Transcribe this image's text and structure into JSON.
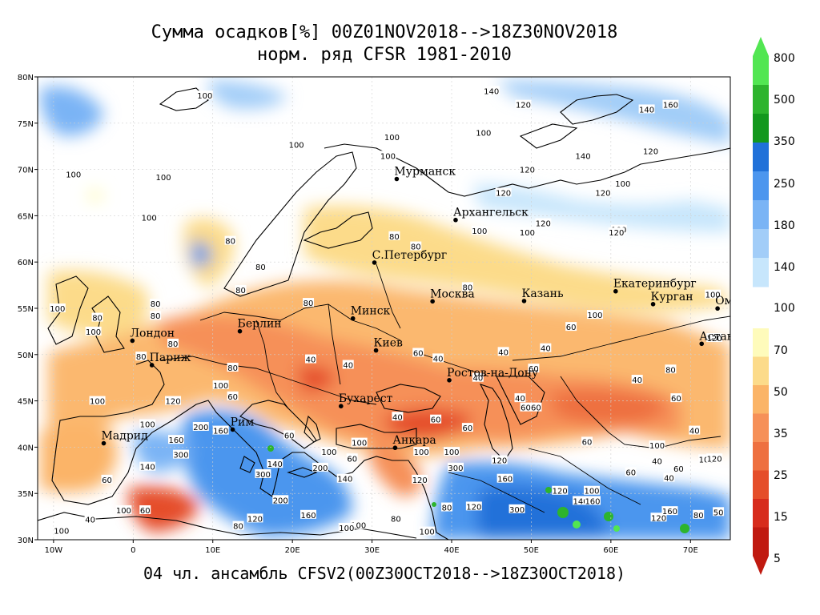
{
  "title_line1": "Сумма осадков[%] 00Z01NOV2018-->18Z30NOV2018",
  "title_line2": "норм. ряд CFSR 1981-2010",
  "footer": "04 чл. ансамбль CFSV2(00Z30OCT2018-->18Z30OCT2018)",
  "map": {
    "lon_range": [
      -12,
      75
    ],
    "lat_range": [
      30,
      80
    ],
    "lat_ticks": [
      "30N",
      "35N",
      "40N",
      "45N",
      "50N",
      "55N",
      "60N",
      "65N",
      "70N",
      "75N",
      "80N"
    ],
    "lon_ticks": [
      "10W",
      "0",
      "10E",
      "20E",
      "30E",
      "40E",
      "50E",
      "60E",
      "70E"
    ]
  },
  "cities": [
    {
      "name": "Мурманск",
      "lon": 33.1,
      "lat": 68.97
    },
    {
      "name": "Архангельск",
      "lon": 40.5,
      "lat": 64.54
    },
    {
      "name": "С.Петербург",
      "lon": 30.3,
      "lat": 59.94
    },
    {
      "name": "Москва",
      "lon": 37.6,
      "lat": 55.75
    },
    {
      "name": "Казань",
      "lon": 49.1,
      "lat": 55.79
    },
    {
      "name": "Екатеринбург",
      "lon": 60.6,
      "lat": 56.84
    },
    {
      "name": "Курган",
      "lon": 65.3,
      "lat": 55.45
    },
    {
      "name": "Омск",
      "lon": 73.4,
      "lat": 54.98
    },
    {
      "name": "Астана",
      "lon": 71.4,
      "lat": 51.17
    },
    {
      "name": "Минск",
      "lon": 27.6,
      "lat": 53.9
    },
    {
      "name": "Берлин",
      "lon": 13.4,
      "lat": 52.52
    },
    {
      "name": "Лондон",
      "lon": -0.1,
      "lat": 51.5
    },
    {
      "name": "Париж",
      "lon": 2.35,
      "lat": 48.86
    },
    {
      "name": "Киев",
      "lon": 30.5,
      "lat": 50.45
    },
    {
      "name": "Ростов-на-Дону",
      "lon": 39.7,
      "lat": 47.23
    },
    {
      "name": "Бухарест",
      "lon": 26.1,
      "lat": 44.43
    },
    {
      "name": "Рим",
      "lon": 12.5,
      "lat": 41.9
    },
    {
      "name": "Мадрид",
      "lon": -3.7,
      "lat": 40.42
    },
    {
      "name": "Анкара",
      "lon": 32.9,
      "lat": 39.93
    }
  ],
  "contour_labels": [
    {
      "t": "100",
      "lon": 9,
      "lat": 78
    },
    {
      "t": "140",
      "lon": 45,
      "lat": 78.5
    },
    {
      "t": "120",
      "lon": 49,
      "lat": 77
    },
    {
      "t": "140",
      "lon": 64.5,
      "lat": 76.5
    },
    {
      "t": "160",
      "lon": 67.5,
      "lat": 77
    },
    {
      "t": "100",
      "lon": 32.5,
      "lat": 73.5
    },
    {
      "t": "100",
      "lon": 20.5,
      "lat": 72.7
    },
    {
      "t": "100",
      "lon": 44,
      "lat": 74
    },
    {
      "t": "140",
      "lon": 56.5,
      "lat": 71.5
    },
    {
      "t": "120",
      "lon": 65,
      "lat": 72
    },
    {
      "t": "100",
      "lon": -7.5,
      "lat": 69.5
    },
    {
      "t": "100",
      "lon": 3.8,
      "lat": 69.2
    },
    {
      "t": "100",
      "lon": 32,
      "lat": 71.5
    },
    {
      "t": "120",
      "lon": 49.5,
      "lat": 70
    },
    {
      "t": "120",
      "lon": 46.5,
      "lat": 67.5
    },
    {
      "t": "120",
      "lon": 59,
      "lat": 67.5
    },
    {
      "t": "100",
      "lon": 61.5,
      "lat": 68.5
    },
    {
      "t": "100",
      "lon": 2,
      "lat": 64.8
    },
    {
      "t": "100",
      "lon": 43.5,
      "lat": 63.4
    },
    {
      "t": "100",
      "lon": 49.5,
      "lat": 63.2
    },
    {
      "t": "120",
      "lon": 51.5,
      "lat": 64.2
    },
    {
      "t": "100",
      "lon": 61,
      "lat": 63.5
    },
    {
      "t": "120",
      "lon": 60.7,
      "lat": 63.2
    },
    {
      "t": "80",
      "lon": 12.2,
      "lat": 62.3
    },
    {
      "t": "80",
      "lon": 32.8,
      "lat": 62.8
    },
    {
      "t": "80",
      "lon": 35.5,
      "lat": 61.7
    },
    {
      "t": "80",
      "lon": 16,
      "lat": 59.5
    },
    {
      "t": "80",
      "lon": 42,
      "lat": 57.3
    },
    {
      "t": "80",
      "lon": -4.5,
      "lat": 54
    },
    {
      "t": "100",
      "lon": -9.5,
      "lat": 55
    },
    {
      "t": "100",
      "lon": -5,
      "lat": 52.5
    },
    {
      "t": "80",
      "lon": 2.8,
      "lat": 55.5
    },
    {
      "t": "80",
      "lon": 13.5,
      "lat": 57
    },
    {
      "t": "80",
      "lon": 2.8,
      "lat": 54.2
    },
    {
      "t": "60",
      "lon": 55,
      "lat": 53
    },
    {
      "t": "100",
      "lon": 58,
      "lat": 54.3
    },
    {
      "t": "120",
      "lon": 73,
      "lat": 51.8
    },
    {
      "t": "100",
      "lon": 72.8,
      "lat": 56.5
    },
    {
      "t": "80",
      "lon": 22,
      "lat": 55.6
    },
    {
      "t": "80",
      "lon": 5,
      "lat": 51.2
    },
    {
      "t": "60",
      "lon": 35.8,
      "lat": 50.2
    },
    {
      "t": "40",
      "lon": 46.5,
      "lat": 50.3
    },
    {
      "t": "40",
      "lon": 38.3,
      "lat": 49.6
    },
    {
      "t": "40",
      "lon": 27,
      "lat": 48.9
    },
    {
      "t": "40",
      "lon": 22.3,
      "lat": 49.5
    },
    {
      "t": "80",
      "lon": 1,
      "lat": 49.8
    },
    {
      "t": "80",
      "lon": 12.5,
      "lat": 48.6
    },
    {
      "t": "40",
      "lon": 43.3,
      "lat": 47.5
    },
    {
      "t": "40",
      "lon": 51.8,
      "lat": 50.7
    },
    {
      "t": "80",
      "lon": 67.5,
      "lat": 48.4
    },
    {
      "t": "40",
      "lon": 63.3,
      "lat": 47.3
    },
    {
      "t": "60",
      "lon": 68.2,
      "lat": 45.3
    },
    {
      "t": "60",
      "lon": 50.3,
      "lat": 48.5
    },
    {
      "t": "40",
      "lon": 48.6,
      "lat": 45.3
    },
    {
      "t": "60",
      "lon": 49.3,
      "lat": 44.3
    },
    {
      "t": "60",
      "lon": 50.6,
      "lat": 44.3
    },
    {
      "t": "40",
      "lon": 33.2,
      "lat": 43.3
    },
    {
      "t": "60",
      "lon": 38,
      "lat": 43
    },
    {
      "t": "60",
      "lon": 42,
      "lat": 42.1
    },
    {
      "t": "120",
      "lon": 5,
      "lat": 45
    },
    {
      "t": "60",
      "lon": 12.5,
      "lat": 45.5
    },
    {
      "t": "100",
      "lon": 11,
      "lat": 46.7
    },
    {
      "t": "100",
      "lon": -4.5,
      "lat": 45
    },
    {
      "t": "100",
      "lon": 1.8,
      "lat": 42.5
    },
    {
      "t": "200",
      "lon": 8.5,
      "lat": 42.2
    },
    {
      "t": "160",
      "lon": 11,
      "lat": 41.8
    },
    {
      "t": "160",
      "lon": 5.4,
      "lat": 40.8
    },
    {
      "t": "60",
      "lon": 19.6,
      "lat": 41.3
    },
    {
      "t": "100",
      "lon": 24.6,
      "lat": 39.5
    },
    {
      "t": "60",
      "lon": 27.5,
      "lat": 38.8
    },
    {
      "t": "200",
      "lon": 23.5,
      "lat": 37.8
    },
    {
      "t": "140",
      "lon": 17.8,
      "lat": 38.2
    },
    {
      "t": "100",
      "lon": 28.4,
      "lat": 40.5
    },
    {
      "t": "140",
      "lon": 26.6,
      "lat": 36.6
    },
    {
      "t": "60",
      "lon": 57,
      "lat": 40.6
    },
    {
      "t": "100",
      "lon": 65.8,
      "lat": 40.2
    },
    {
      "t": "40",
      "lon": 70.5,
      "lat": 41.8
    },
    {
      "t": "40",
      "lon": 65.8,
      "lat": 38.5
    },
    {
      "t": "60",
      "lon": 68.5,
      "lat": 37.7
    },
    {
      "t": "100",
      "lon": 72,
      "lat": 38.7
    },
    {
      "t": "120",
      "lon": 73,
      "lat": 38.8
    },
    {
      "t": "60",
      "lon": 62.5,
      "lat": 37.3
    },
    {
      "t": "40",
      "lon": 67.3,
      "lat": 36.7
    },
    {
      "t": "160",
      "lon": 46.7,
      "lat": 36.6
    },
    {
      "t": "120",
      "lon": 53.6,
      "lat": 35.3
    },
    {
      "t": "100",
      "lon": 57.6,
      "lat": 35.3
    },
    {
      "t": "140",
      "lon": 56.2,
      "lat": 34.2
    },
    {
      "t": "160",
      "lon": 57.7,
      "lat": 34.2
    },
    {
      "t": "300",
      "lon": 40.5,
      "lat": 37.8
    },
    {
      "t": "100",
      "lon": 36.2,
      "lat": 39.5
    },
    {
      "t": "100",
      "lon": 40,
      "lat": 39.5
    },
    {
      "t": "120",
      "lon": 46,
      "lat": 38.6
    },
    {
      "t": "120",
      "lon": 36,
      "lat": 36.5
    },
    {
      "t": "120",
      "lon": 42.8,
      "lat": 33.6
    },
    {
      "t": "80",
      "lon": 39.4,
      "lat": 33.5
    },
    {
      "t": "300",
      "lon": 48.2,
      "lat": 33.3
    },
    {
      "t": "300",
      "lon": 6,
      "lat": 39.2
    },
    {
      "t": "140",
      "lon": 1.8,
      "lat": 37.9
    },
    {
      "t": "60",
      "lon": -3.3,
      "lat": 36.5
    },
    {
      "t": "100",
      "lon": -1.2,
      "lat": 33.2
    },
    {
      "t": "60",
      "lon": 1.5,
      "lat": 33.2
    },
    {
      "t": "40",
      "lon": -5.4,
      "lat": 32.2
    },
    {
      "t": "300",
      "lon": 16.3,
      "lat": 37.1
    },
    {
      "t": "200",
      "lon": 18.5,
      "lat": 34.3
    },
    {
      "t": "160",
      "lon": 22,
      "lat": 32.7
    },
    {
      "t": "120",
      "lon": 15.3,
      "lat": 32.3
    },
    {
      "t": "100",
      "lon": 28.3,
      "lat": 31.6
    },
    {
      "t": "80",
      "lon": 33,
      "lat": 32.3
    },
    {
      "t": "100",
      "lon": 26.8,
      "lat": 31.3
    },
    {
      "t": "100",
      "lon": 36.9,
      "lat": 30.9
    },
    {
      "t": "120",
      "lon": 66,
      "lat": 32.4
    },
    {
      "t": "160",
      "lon": 67.4,
      "lat": 33.1
    },
    {
      "t": "80",
      "lon": 71,
      "lat": 32.7
    },
    {
      "t": "50",
      "lon": 73.5,
      "lat": 33
    },
    {
      "t": "100",
      "lon": -9,
      "lat": 31
    },
    {
      "t": "80",
      "lon": 13.2,
      "lat": 31.5
    }
  ],
  "legend": {
    "labels": [
      "800",
      "500",
      "350",
      "250",
      "180",
      "140",
      "100",
      "70",
      "50",
      "35",
      "25",
      "15",
      "5"
    ],
    "colors": [
      "#52e652",
      "#2db42d",
      "#13981d",
      "#2071d9",
      "#4c96ee",
      "#7ab4f5",
      "#a2cdf8",
      "#c7e6fc",
      "#fefbbb",
      "#fcdb8a",
      "#fbb467",
      "#f69058",
      "#ee7040",
      "#e54e2a",
      "#d72c1c",
      "#c01a10"
    ]
  }
}
